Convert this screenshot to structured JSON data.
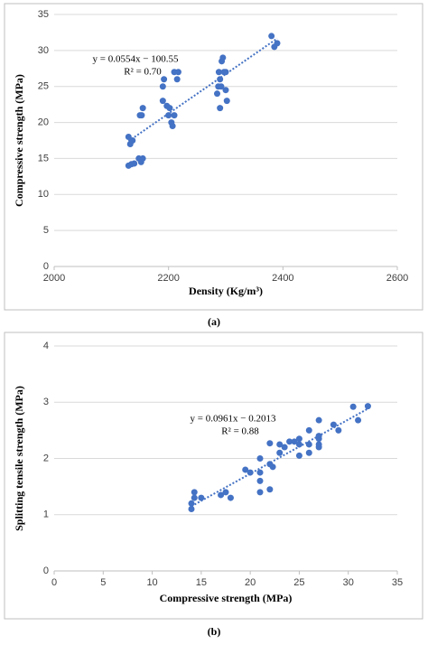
{
  "chart_data": [
    {
      "type": "scatter",
      "x_label": "Density (Kg/m³)",
      "y_label": "Compressive strength (MPa)",
      "annotations": [
        "y = 0.0554x − 100.55",
        "R² = 0.70"
      ],
      "caption": "(a)",
      "color": "#4472c4",
      "grid": true,
      "x": [
        2130,
        2133,
        2137,
        2130,
        2135,
        2140,
        2148,
        2152,
        2155,
        2150,
        2153,
        2155,
        2190,
        2192,
        2190,
        2197,
        2200,
        2202,
        2205,
        2207,
        2210,
        2210,
        2215,
        2217,
        2285,
        2287,
        2288,
        2290,
        2290,
        2292,
        2293,
        2295,
        2297,
        2300,
        2302,
        2300,
        2380,
        2385,
        2390
      ],
      "values": [
        18,
        17,
        17.5,
        14,
        14.2,
        14.3,
        15,
        14.5,
        15,
        21,
        21,
        22,
        25,
        26,
        23,
        22.3,
        21,
        22,
        20,
        19.5,
        21,
        27,
        26,
        27,
        24,
        25,
        27,
        26,
        22,
        25,
        28.5,
        29,
        27,
        24.5,
        23,
        27,
        32,
        30.5,
        31
      ],
      "xlim": [
        2000,
        2600
      ],
      "xticks": [
        2000,
        2200,
        2400,
        2600
      ],
      "ylim": [
        0,
        35
      ],
      "yticks": [
        0,
        5,
        10,
        15,
        20,
        25,
        30,
        35
      ]
    },
    {
      "type": "scatter",
      "x_label": "Compressive strength (MPa)",
      "y_label": "Splitting tensile strength (MPa)",
      "annotations": [
        "y = 0.0961x − 0.2013",
        "R² = 0.88"
      ],
      "caption": "(b)",
      "color": "#4472c4",
      "grid": true,
      "x": [
        14,
        14,
        14.3,
        14.3,
        15,
        17,
        17.5,
        18,
        19.5,
        20,
        21,
        21,
        21,
        21,
        22,
        22,
        22,
        22.3,
        23,
        23,
        23.5,
        24,
        24.5,
        25,
        25,
        25,
        26,
        26,
        26,
        27,
        27,
        27,
        27,
        27,
        28.5,
        29,
        30.5,
        31,
        32
      ],
      "values": [
        1.1,
        1.2,
        1.3,
        1.4,
        1.3,
        1.35,
        1.4,
        1.3,
        1.8,
        1.75,
        1.4,
        1.6,
        1.75,
        2.0,
        1.45,
        1.9,
        2.27,
        1.85,
        2.1,
        2.25,
        2.2,
        2.3,
        2.3,
        2.05,
        2.25,
        2.35,
        2.1,
        2.25,
        2.5,
        2.2,
        2.25,
        2.35,
        2.4,
        2.68,
        2.6,
        2.5,
        2.92,
        2.68,
        2.93
      ],
      "xlim": [
        0,
        35
      ],
      "xticks": [
        0,
        5,
        10,
        15,
        20,
        25,
        30,
        35
      ],
      "ylim": [
        0,
        4
      ],
      "yticks": [
        0,
        1,
        2,
        3,
        4
      ]
    }
  ]
}
